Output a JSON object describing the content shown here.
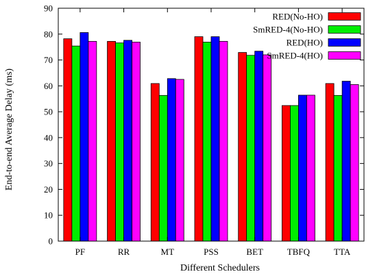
{
  "chart_data": {
    "type": "bar",
    "title": "",
    "xlabel": "Different Schedulers",
    "ylabel": "End-to-end Average Delay (ms)",
    "ylim": [
      0,
      90
    ],
    "yticks": [
      0,
      10,
      20,
      30,
      40,
      50,
      60,
      70,
      80,
      90
    ],
    "grid": false,
    "legend_position": "top-right",
    "categories": [
      "PF",
      "RR",
      "MT",
      "PSS",
      "BET",
      "TBFQ",
      "TTA"
    ],
    "series": [
      {
        "name": "RED(No-HO)",
        "color": "#ff0000",
        "values": [
          78.2,
          77.2,
          60.9,
          79.0,
          72.9,
          52.4,
          60.9
        ]
      },
      {
        "name": "SmRED-4(No-HO)",
        "color": "#00ee00",
        "values": [
          75.4,
          76.6,
          56.3,
          76.9,
          71.8,
          52.4,
          56.3
        ]
      },
      {
        "name": "RED(HO)",
        "color": "#0000ff",
        "values": [
          80.6,
          77.6,
          62.8,
          79.0,
          73.4,
          56.4,
          61.8
        ]
      },
      {
        "name": "SmRED-4(HO)",
        "color": "#ff00ff",
        "values": [
          77.2,
          76.9,
          62.5,
          77.2,
          72.0,
          56.4,
          60.5
        ]
      }
    ]
  }
}
